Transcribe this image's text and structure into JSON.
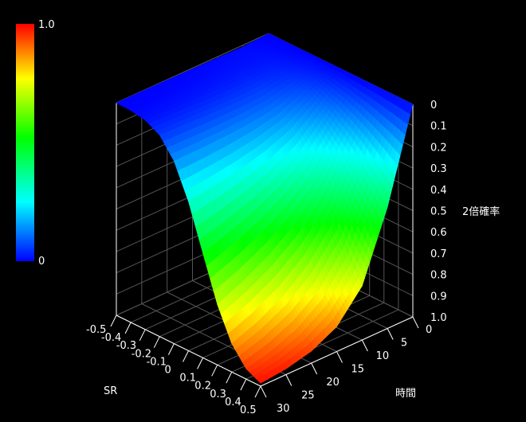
{
  "chart_data": {
    "type": "surface",
    "x_axis": {
      "label": "SR",
      "ticks": [
        "-0.5",
        "-0.4",
        "-0.3",
        "-0.2",
        "-0.1",
        "0",
        "0.1",
        "0.2",
        "0.3",
        "0.4",
        "0.5"
      ],
      "range": [
        -0.5,
        0.5
      ]
    },
    "y_axis": {
      "label": "時間",
      "ticks": [
        "0",
        "5",
        "10",
        "15",
        "20",
        "25",
        "30"
      ],
      "range": [
        0,
        30
      ]
    },
    "z_axis": {
      "label": "2倍確率",
      "ticks": [
        "0",
        "0.1",
        "0.2",
        "0.3",
        "0.4",
        "0.5",
        "0.6",
        "0.7",
        "0.8",
        "0.9",
        "1.0"
      ],
      "range": [
        0,
        1
      ],
      "inverted": true
    },
    "colorbar": {
      "max_label": "1.0",
      "min_label": "0",
      "colormap": "jet"
    },
    "grid": true,
    "sr_values": [
      -0.5,
      -0.4,
      -0.3,
      -0.2,
      -0.1,
      0,
      0.1,
      0.2,
      0.3,
      0.4,
      0.5
    ],
    "time_values": [
      0,
      5,
      10,
      15,
      20,
      25,
      30
    ],
    "z_values": [
      [
        0,
        0,
        0,
        0,
        0,
        0,
        0,
        0,
        0,
        0,
        0
      ],
      [
        0.008,
        0.014,
        0.024,
        0.041,
        0.064,
        0.097,
        0.142,
        0.198,
        0.265,
        0.344,
        0.429
      ],
      [
        0.006,
        0.015,
        0.031,
        0.061,
        0.109,
        0.179,
        0.274,
        0.389,
        0.512,
        0.636,
        0.746
      ],
      [
        0.004,
        0.011,
        0.028,
        0.064,
        0.127,
        0.227,
        0.359,
        0.51,
        0.66,
        0.788,
        0.883
      ],
      [
        0.002,
        0.007,
        0.023,
        0.062,
        0.136,
        0.258,
        0.421,
        0.597,
        0.756,
        0.873,
        0.944
      ],
      [
        0.001,
        0.005,
        0.019,
        0.057,
        0.14,
        0.281,
        0.468,
        0.663,
        0.821,
        0.922,
        0.973
      ],
      [
        0.001,
        0.003,
        0.015,
        0.052,
        0.141,
        0.298,
        0.508,
        0.715,
        0.867,
        0.952,
        0.986
      ]
    ],
    "colors": {
      "background": "#000000",
      "axis": "#ffffff",
      "grid": "#555555"
    }
  }
}
